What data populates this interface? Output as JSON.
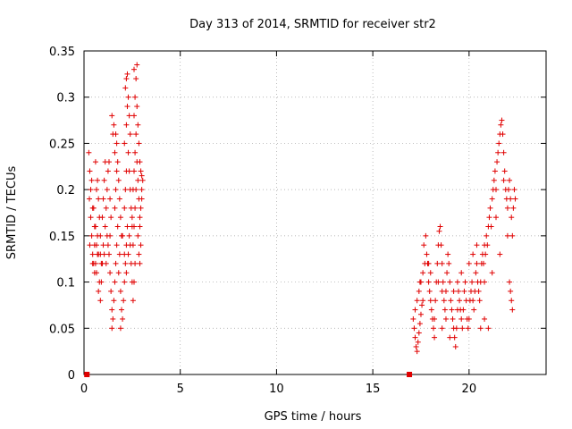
{
  "chart_data": {
    "type": "scatter",
    "title": "Day 313 of 2014, SRMTID for receiver str2",
    "xlabel": "GPS time / hours",
    "ylabel": "SRMTID / TECUs",
    "xlim": [
      0,
      24
    ],
    "ylim": [
      0,
      0.35
    ],
    "x_ticks": [
      0,
      5,
      10,
      15,
      20
    ],
    "x_tick_labels": [
      "0",
      "5",
      "10",
      "15",
      "20"
    ],
    "y_ticks": [
      0,
      0.05,
      0.1,
      0.15,
      0.2,
      0.25,
      0.3,
      0.35
    ],
    "y_tick_labels": [
      "0",
      "0.05",
      "0.1",
      "0.15",
      "0.2",
      "0.25",
      "0.3",
      "0.35"
    ],
    "grid": true,
    "marker": "plus",
    "color": "#e00000",
    "zero_markers": [
      {
        "x": 0.15,
        "y": 0
      },
      {
        "x": 16.9,
        "y": 0
      }
    ],
    "series": [
      {
        "name": "",
        "points": [
          [
            0.25,
            0.24
          ],
          [
            0.3,
            0.22
          ],
          [
            0.28,
            0.19
          ],
          [
            0.35,
            0.17
          ],
          [
            0.4,
            0.15
          ],
          [
            0.3,
            0.14
          ],
          [
            0.45,
            0.13
          ],
          [
            0.5,
            0.12
          ],
          [
            0.55,
            0.14
          ],
          [
            0.6,
            0.16
          ],
          [
            0.5,
            0.18
          ],
          [
            0.65,
            0.2
          ],
          [
            0.7,
            0.21
          ],
          [
            0.6,
            0.23
          ],
          [
            0.75,
            0.19
          ],
          [
            0.8,
            0.17
          ],
          [
            0.7,
            0.15
          ],
          [
            0.85,
            0.13
          ],
          [
            0.9,
            0.12
          ],
          [
            0.4,
            0.21
          ],
          [
            0.35,
            0.2
          ],
          [
            0.45,
            0.18
          ],
          [
            0.55,
            0.16
          ],
          [
            0.65,
            0.14
          ],
          [
            0.75,
            0.13
          ],
          [
            0.85,
            0.15
          ],
          [
            0.95,
            0.17
          ],
          [
            1.0,
            0.19
          ],
          [
            1.05,
            0.21
          ],
          [
            1.1,
            0.23
          ],
          [
            0.8,
            0.1
          ],
          [
            0.75,
            0.09
          ],
          [
            0.85,
            0.08
          ],
          [
            0.9,
            0.1
          ],
          [
            0.95,
            0.12
          ],
          [
            1.0,
            0.14
          ],
          [
            1.1,
            0.16
          ],
          [
            1.15,
            0.18
          ],
          [
            1.2,
            0.2
          ],
          [
            1.25,
            0.22
          ],
          [
            1.3,
            0.23
          ],
          [
            1.35,
            0.19
          ],
          [
            1.4,
            0.17
          ],
          [
            1.2,
            0.15
          ],
          [
            1.3,
            0.13
          ],
          [
            1.35,
            0.11
          ],
          [
            1.4,
            0.09
          ],
          [
            1.45,
            0.07
          ],
          [
            1.5,
            0.06
          ],
          [
            1.45,
            0.05
          ],
          [
            1.55,
            0.08
          ],
          [
            1.6,
            0.1
          ],
          [
            1.65,
            0.12
          ],
          [
            1.7,
            0.14
          ],
          [
            1.75,
            0.16
          ],
          [
            1.6,
            0.18
          ],
          [
            1.65,
            0.2
          ],
          [
            1.7,
            0.22
          ],
          [
            1.6,
            0.24
          ],
          [
            1.5,
            0.26
          ],
          [
            1.55,
            0.27
          ],
          [
            1.45,
            0.28
          ],
          [
            1.65,
            0.26
          ],
          [
            1.7,
            0.25
          ],
          [
            1.75,
            0.23
          ],
          [
            1.8,
            0.21
          ],
          [
            1.85,
            0.19
          ],
          [
            1.9,
            0.17
          ],
          [
            1.95,
            0.15
          ],
          [
            1.85,
            0.13
          ],
          [
            1.8,
            0.11
          ],
          [
            1.9,
            0.09
          ],
          [
            1.95,
            0.07
          ],
          [
            2.0,
            0.06
          ],
          [
            1.9,
            0.05
          ],
          [
            2.05,
            0.08
          ],
          [
            2.1,
            0.1
          ],
          [
            2.15,
            0.12
          ],
          [
            2.2,
            0.14
          ],
          [
            2.25,
            0.16
          ],
          [
            2.1,
            0.18
          ],
          [
            2.15,
            0.2
          ],
          [
            2.2,
            0.22
          ],
          [
            2.1,
            0.25
          ],
          [
            2.2,
            0.27
          ],
          [
            2.25,
            0.29
          ],
          [
            2.15,
            0.31
          ],
          [
            2.2,
            0.32
          ],
          [
            2.25,
            0.325
          ],
          [
            2.3,
            0.3
          ],
          [
            2.35,
            0.28
          ],
          [
            2.4,
            0.26
          ],
          [
            2.3,
            0.24
          ],
          [
            2.35,
            0.22
          ],
          [
            2.4,
            0.2
          ],
          [
            2.45,
            0.18
          ],
          [
            2.5,
            0.16
          ],
          [
            2.4,
            0.14
          ],
          [
            2.45,
            0.12
          ],
          [
            2.5,
            0.1
          ],
          [
            2.55,
            0.08
          ],
          [
            2.6,
            0.1
          ],
          [
            2.65,
            0.12
          ],
          [
            2.55,
            0.14
          ],
          [
            2.6,
            0.16
          ],
          [
            2.65,
            0.18
          ],
          [
            2.7,
            0.2
          ],
          [
            2.6,
            0.22
          ],
          [
            2.65,
            0.24
          ],
          [
            2.7,
            0.26
          ],
          [
            2.6,
            0.28
          ],
          [
            2.65,
            0.3
          ],
          [
            2.7,
            0.32
          ],
          [
            2.75,
            0.335
          ],
          [
            2.6,
            0.33
          ],
          [
            2.75,
            0.29
          ],
          [
            2.8,
            0.27
          ],
          [
            2.85,
            0.25
          ],
          [
            2.75,
            0.23
          ],
          [
            2.8,
            0.21
          ],
          [
            2.85,
            0.19
          ],
          [
            2.9,
            0.17
          ],
          [
            2.8,
            0.15
          ],
          [
            2.85,
            0.13
          ],
          [
            2.9,
            0.12
          ],
          [
            2.95,
            0.14
          ],
          [
            2.9,
            0.16
          ],
          [
            2.95,
            0.18
          ],
          [
            3.0,
            0.2
          ],
          [
            2.95,
            0.22
          ],
          [
            3.0,
            0.215
          ],
          [
            2.9,
            0.23
          ],
          [
            3.05,
            0.21
          ],
          [
            3.0,
            0.19
          ],
          [
            2.5,
            0.17
          ],
          [
            2.35,
            0.15
          ],
          [
            2.3,
            0.13
          ],
          [
            2.2,
            0.11
          ],
          [
            2.1,
            0.13
          ],
          [
            2.0,
            0.15
          ],
          [
            0.55,
            0.11
          ],
          [
            0.45,
            0.12
          ],
          [
            0.65,
            0.11
          ],
          [
            0.7,
            0.13
          ],
          [
            0.6,
            0.12
          ],
          [
            1.15,
            0.12
          ],
          [
            1.05,
            0.13
          ],
          [
            1.25,
            0.14
          ],
          [
            1.35,
            0.15
          ],
          [
            2.55,
            0.2
          ],
          [
            17.1,
            0.06
          ],
          [
            17.15,
            0.05
          ],
          [
            17.2,
            0.04
          ],
          [
            17.25,
            0.03
          ],
          [
            17.3,
            0.025
          ],
          [
            17.35,
            0.035
          ],
          [
            17.4,
            0.045
          ],
          [
            17.45,
            0.055
          ],
          [
            17.5,
            0.065
          ],
          [
            17.55,
            0.075
          ],
          [
            17.3,
            0.08
          ],
          [
            17.4,
            0.09
          ],
          [
            17.5,
            0.1
          ],
          [
            17.6,
            0.11
          ],
          [
            17.7,
            0.12
          ],
          [
            17.8,
            0.13
          ],
          [
            17.65,
            0.14
          ],
          [
            17.75,
            0.15
          ],
          [
            17.85,
            0.12
          ],
          [
            17.9,
            0.1
          ],
          [
            17.95,
            0.09
          ],
          [
            18.0,
            0.08
          ],
          [
            18.05,
            0.07
          ],
          [
            18.1,
            0.06
          ],
          [
            18.15,
            0.05
          ],
          [
            18.2,
            0.06
          ],
          [
            18.25,
            0.08
          ],
          [
            18.3,
            0.1
          ],
          [
            18.35,
            0.12
          ],
          [
            18.4,
            0.14
          ],
          [
            18.45,
            0.155
          ],
          [
            18.5,
            0.16
          ],
          [
            18.55,
            0.14
          ],
          [
            18.6,
            0.12
          ],
          [
            18.65,
            0.1
          ],
          [
            18.7,
            0.08
          ],
          [
            18.75,
            0.07
          ],
          [
            18.8,
            0.09
          ],
          [
            18.85,
            0.11
          ],
          [
            18.9,
            0.13
          ],
          [
            18.95,
            0.12
          ],
          [
            19.0,
            0.1
          ],
          [
            19.05,
            0.08
          ],
          [
            19.1,
            0.07
          ],
          [
            19.15,
            0.06
          ],
          [
            19.2,
            0.05
          ],
          [
            19.25,
            0.04
          ],
          [
            19.3,
            0.03
          ],
          [
            19.35,
            0.05
          ],
          [
            19.4,
            0.07
          ],
          [
            19.45,
            0.09
          ],
          [
            19.5,
            0.08
          ],
          [
            19.55,
            0.07
          ],
          [
            19.6,
            0.06
          ],
          [
            19.65,
            0.05
          ],
          [
            19.7,
            0.07
          ],
          [
            19.75,
            0.09
          ],
          [
            19.8,
            0.1
          ],
          [
            19.85,
            0.08
          ],
          [
            19.9,
            0.06
          ],
          [
            19.95,
            0.05
          ],
          [
            20.0,
            0.06
          ],
          [
            20.05,
            0.08
          ],
          [
            20.1,
            0.09
          ],
          [
            20.15,
            0.1
          ],
          [
            20.2,
            0.08
          ],
          [
            20.25,
            0.07
          ],
          [
            20.3,
            0.09
          ],
          [
            20.35,
            0.11
          ],
          [
            20.4,
            0.12
          ],
          [
            20.45,
            0.1
          ],
          [
            20.5,
            0.09
          ],
          [
            20.55,
            0.08
          ],
          [
            20.6,
            0.1
          ],
          [
            20.65,
            0.12
          ],
          [
            20.7,
            0.13
          ],
          [
            20.75,
            0.12
          ],
          [
            20.8,
            0.14
          ],
          [
            20.85,
            0.13
          ],
          [
            20.9,
            0.15
          ],
          [
            20.95,
            0.14
          ],
          [
            21.0,
            0.16
          ],
          [
            21.05,
            0.17
          ],
          [
            21.1,
            0.18
          ],
          [
            21.15,
            0.16
          ],
          [
            21.2,
            0.19
          ],
          [
            21.25,
            0.2
          ],
          [
            21.3,
            0.21
          ],
          [
            21.35,
            0.22
          ],
          [
            21.4,
            0.2
          ],
          [
            21.45,
            0.23
          ],
          [
            21.5,
            0.24
          ],
          [
            21.55,
            0.25
          ],
          [
            21.6,
            0.26
          ],
          [
            21.65,
            0.27
          ],
          [
            21.7,
            0.275
          ],
          [
            21.75,
            0.26
          ],
          [
            21.8,
            0.24
          ],
          [
            21.85,
            0.22
          ],
          [
            21.9,
            0.2
          ],
          [
            21.95,
            0.19
          ],
          [
            22.0,
            0.18
          ],
          [
            22.05,
            0.2
          ],
          [
            22.1,
            0.21
          ],
          [
            22.15,
            0.19
          ],
          [
            22.2,
            0.17
          ],
          [
            22.25,
            0.15
          ],
          [
            22.3,
            0.18
          ],
          [
            22.35,
            0.2
          ],
          [
            22.4,
            0.19
          ],
          [
            22.1,
            0.1
          ],
          [
            22.15,
            0.09
          ],
          [
            22.2,
            0.08
          ],
          [
            22.25,
            0.07
          ],
          [
            21.0,
            0.05
          ],
          [
            20.8,
            0.06
          ],
          [
            20.6,
            0.05
          ],
          [
            19.0,
            0.04
          ],
          [
            18.6,
            0.05
          ],
          [
            18.2,
            0.04
          ],
          [
            17.2,
            0.07
          ],
          [
            17.6,
            0.08
          ],
          [
            18.0,
            0.11
          ],
          [
            18.4,
            0.1
          ],
          [
            18.8,
            0.06
          ],
          [
            19.2,
            0.09
          ],
          [
            19.6,
            0.11
          ],
          [
            20.0,
            0.12
          ],
          [
            20.4,
            0.14
          ],
          [
            20.8,
            0.1
          ],
          [
            21.2,
            0.11
          ],
          [
            21.6,
            0.13
          ],
          [
            22.0,
            0.15
          ],
          [
            21.4,
            0.17
          ],
          [
            21.8,
            0.21
          ],
          [
            20.2,
            0.13
          ],
          [
            19.4,
            0.1
          ],
          [
            18.6,
            0.09
          ],
          [
            17.9,
            0.12
          ],
          [
            17.45,
            0.1
          ]
        ]
      }
    ]
  }
}
